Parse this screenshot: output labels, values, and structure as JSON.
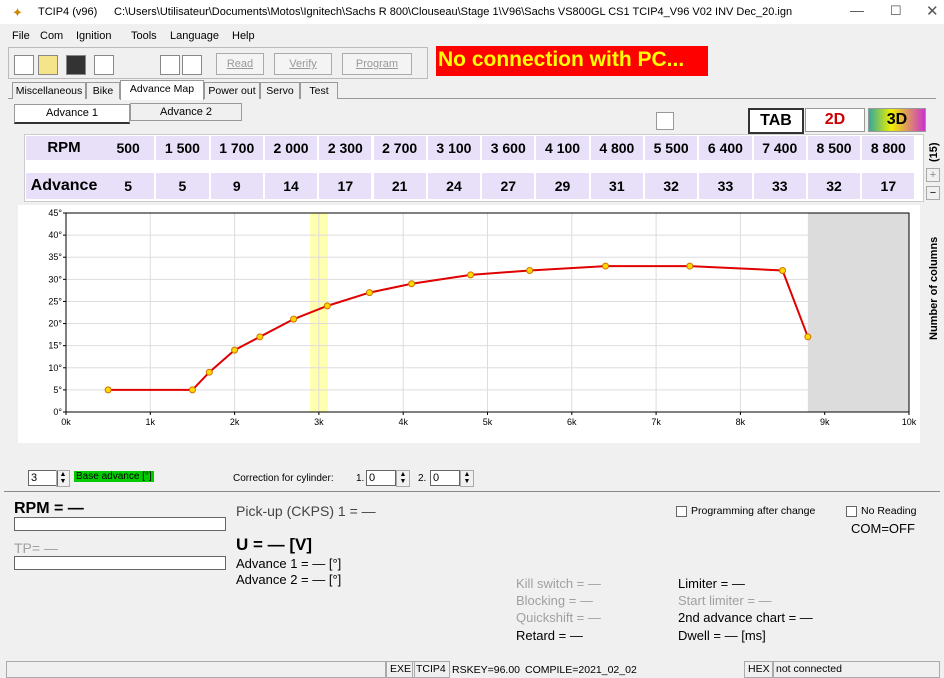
{
  "window": {
    "title": "TCIP4 (v96)",
    "path": "C:\\Users\\Utilisateur\\Documents\\Motos\\Ignitech\\Sachs R 800\\Clouseau\\Stage 1\\V96\\Sachs VS800GL CS1 TCIP4_V96 V02 INV Dec_20.ign"
  },
  "menu": [
    "File",
    "Com",
    "Ignition",
    "Tools",
    "Language",
    "Help"
  ],
  "toolbar": {
    "buttons": [
      "Read",
      "Verify",
      "Program"
    ],
    "banner": "No connection with PC..."
  },
  "tabs": [
    "Miscellaneous",
    "Bike",
    "Advance Map",
    "Power out",
    "Servo",
    "Test"
  ],
  "subtabs": [
    "Advance 1",
    "Advance 2"
  ],
  "views": [
    "TAB",
    "2D",
    "3D"
  ],
  "table": {
    "row_labels": [
      "RPM",
      "Advance"
    ],
    "rpm": [
      "500",
      "1 500",
      "1 700",
      "2 000",
      "2 300",
      "2 700",
      "3 100",
      "3 600",
      "4 100",
      "4 800",
      "5 500",
      "6 400",
      "7 400",
      "8 500",
      "8 800"
    ],
    "advance": [
      5,
      5,
      9,
      14,
      17,
      21,
      24,
      27,
      29,
      31,
      32,
      33,
      33,
      32,
      17
    ]
  },
  "columns": {
    "count": "(15)",
    "label": "Number of columns"
  },
  "chart_data": {
    "type": "line",
    "x": [
      500,
      1500,
      1700,
      2000,
      2300,
      2700,
      3100,
      3600,
      4100,
      4800,
      5500,
      6400,
      7400,
      8500,
      8800
    ],
    "series": [
      {
        "color": "#e00000",
        "values": [
          5,
          5,
          9,
          14,
          17,
          21,
          24,
          27,
          29,
          31,
          32,
          33,
          33,
          32,
          17
        ]
      }
    ],
    "marker_color": "#ffd800",
    "xlim": [
      0,
      10000
    ],
    "xticks": [
      {
        "value": 0,
        "label": "0k"
      },
      {
        "value": 1000,
        "label": "1k"
      },
      {
        "value": 2000,
        "label": "2k"
      },
      {
        "value": 3000,
        "label": "3k"
      },
      {
        "value": 4000,
        "label": "4k"
      },
      {
        "value": 5000,
        "label": "5k"
      },
      {
        "value": 6000,
        "label": "6k"
      },
      {
        "value": 7000,
        "label": "7k"
      },
      {
        "value": 8000,
        "label": "8k"
      },
      {
        "value": 9000,
        "label": "9k"
      },
      {
        "value": 10000,
        "label": "10k"
      }
    ],
    "ylim": [
      0,
      45
    ],
    "yticks": [
      {
        "value": 0,
        "label": "0°"
      },
      {
        "value": 5,
        "label": "5°"
      },
      {
        "value": 10,
        "label": "10°"
      },
      {
        "value": 15,
        "label": "15°"
      },
      {
        "value": 20,
        "label": "20°"
      },
      {
        "value": 25,
        "label": "25°"
      },
      {
        "value": 30,
        "label": "30°"
      },
      {
        "value": 35,
        "label": "35°"
      },
      {
        "value": 40,
        "label": "40°"
      },
      {
        "value": 45,
        "label": "45°"
      }
    ],
    "grid": true
  },
  "controls": {
    "base_advance": "3",
    "base_advance_label": "Base advance [°]",
    "correction_label": "Correction for cylinder:",
    "cyl1": "1.",
    "cyl1_value": "0",
    "cyl2": "2.",
    "cyl2_value": "0"
  },
  "status": {
    "rpm": "RPM = —",
    "tp": "TP= —",
    "pickup": "Pick-up (CKPS) 1 = —",
    "u": "U = — [V]",
    "adv1": "Advance 1 = — [°]",
    "adv2": "Advance 2 = — [°]",
    "kill": "Kill switch = —",
    "blocking": "Blocking = —",
    "quickshift": "Quickshift = —",
    "retard": "Retard = —",
    "limiter": "Limiter = —",
    "start_limiter": "Start limiter = —",
    "second_chart": "2nd advance chart = —",
    "dwell": "Dwell = — [ms]",
    "prog_after": "Programming after change",
    "no_reading": "No Reading",
    "com": "COM=OFF"
  },
  "statusbar": {
    "exe": "EXE",
    "tcip": "TCIP4",
    "rskey": "RSKEY=96.00",
    "compile": "COMPILE=2021_02_02",
    "hex": "HEX",
    "conn": "not connected"
  }
}
